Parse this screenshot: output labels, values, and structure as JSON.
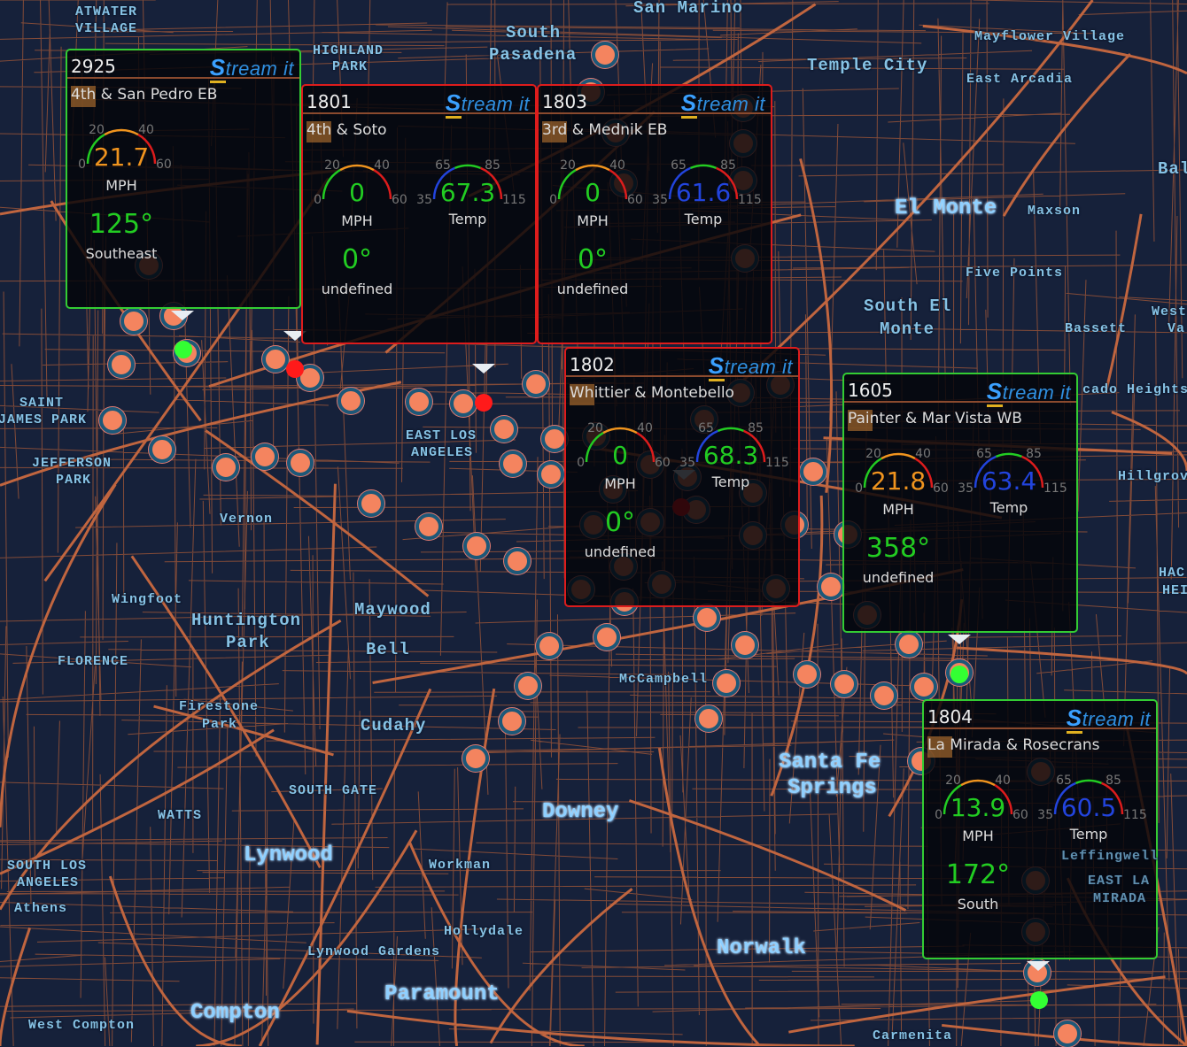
{
  "colors": {
    "background": "#16213a",
    "road": "#c0653f",
    "marker_fill": "#f4845f",
    "marker_ring": "#1d5878",
    "alert_red": "#ff1a1a",
    "ok_green": "#33ff33",
    "popup_ok": "#33cc33",
    "popup_alert": "#dd1c1c",
    "gauge_green": "#22cc22",
    "gauge_orange": "#f0941e",
    "gauge_red": "#dd1c1c",
    "gauge_blue": "#2244dd"
  },
  "place_labels": [
    "ATWATER",
    "VILLAGE",
    "HIGHLAND",
    "PARK",
    "South",
    "Pasadena",
    "San Marino",
    "Mayflower Village",
    "Temple City",
    "East Arcadia",
    "Bal",
    "El Monte",
    "Maxson",
    "Five Points",
    "South El",
    "Monte",
    "West",
    "Va",
    "Bassett",
    "cado Heights",
    "Hillgrove",
    "HAC",
    "HEI",
    "SAINT",
    "JAMES PARK",
    "JEFFERSON",
    "PARK",
    "EAST LOS",
    "ANGELES",
    "Vernon",
    "Wingfoot",
    "Huntington",
    "Park",
    "Maywood",
    "Bell",
    "FLORENCE",
    "McCampbell",
    "Firestone",
    "Park",
    "Cudahy",
    "SOUTH GATE",
    "WATTS",
    "Santa Fe",
    "Springs",
    "Downey",
    "Lynwood",
    "SOUTH LOS",
    "ANGELES",
    "Athens",
    "Workman",
    "Hollydale",
    "Lynwood Gardens",
    "Norwalk",
    "Paramount",
    "Compton",
    "West Compton",
    "Carmenita",
    "Leffingwell",
    "EAST LA",
    "MIRADA"
  ],
  "logo_text": "Stream it",
  "popups": [
    {
      "id": "1801",
      "location": "4th & Soto",
      "status": "alert",
      "speed": 0,
      "speed_unit": "MPH",
      "temp": 67.3,
      "temp_label": "Temp",
      "direction": "0°",
      "direction_label": "undefined"
    },
    {
      "id": "2925",
      "location": "4th & San Pedro EB",
      "status": "ok",
      "speed": 21.7,
      "speed_unit": "MPH",
      "temp": null,
      "temp_label": "",
      "direction": "125°",
      "direction_label": "Southeast"
    },
    {
      "id": "1802",
      "location": "Whittier & Montebello",
      "status": "alert",
      "speed": 0,
      "speed_unit": "MPH",
      "temp": 68.3,
      "temp_label": "Temp",
      "direction": "0°",
      "direction_label": "undefined"
    },
    {
      "id": "1803",
      "location": "3rd & Mednik EB",
      "status": "alert",
      "speed": 0,
      "speed_unit": "MPH",
      "temp": 61.6,
      "temp_label": "Temp",
      "direction": "0°",
      "direction_label": "undefined"
    },
    {
      "id": "1605",
      "location": "Painter & Mar Vista WB",
      "status": "ok",
      "speed": 21.8,
      "speed_unit": "MPH",
      "temp": 63.4,
      "temp_label": "Temp",
      "direction": "358°",
      "direction_label": "undefined"
    },
    {
      "id": "1804",
      "location": "La Mirada & Rosecrans",
      "status": "ok",
      "speed": 13.9,
      "speed_unit": "MPH",
      "temp": 60.5,
      "temp_label": "Temp",
      "direction": "172°",
      "direction_label": "South"
    }
  ],
  "speed_gauge": {
    "min": 0,
    "max": 60,
    "ticks": [
      "0",
      "20",
      "40",
      "60"
    ],
    "bands": [
      {
        "to": 20,
        "color": "#22cc22"
      },
      {
        "to": 40,
        "color": "#f0941e"
      },
      {
        "to": 60,
        "color": "#dd1c1c"
      }
    ]
  },
  "temp_gauge": {
    "min": 35,
    "max": 115,
    "ticks": [
      "35",
      "65",
      "85",
      "115"
    ],
    "bands": [
      {
        "to": 65,
        "color": "#2244dd"
      },
      {
        "to": 85,
        "color": "#22cc22"
      },
      {
        "to": 115,
        "color": "#dd1c1c"
      }
    ]
  }
}
